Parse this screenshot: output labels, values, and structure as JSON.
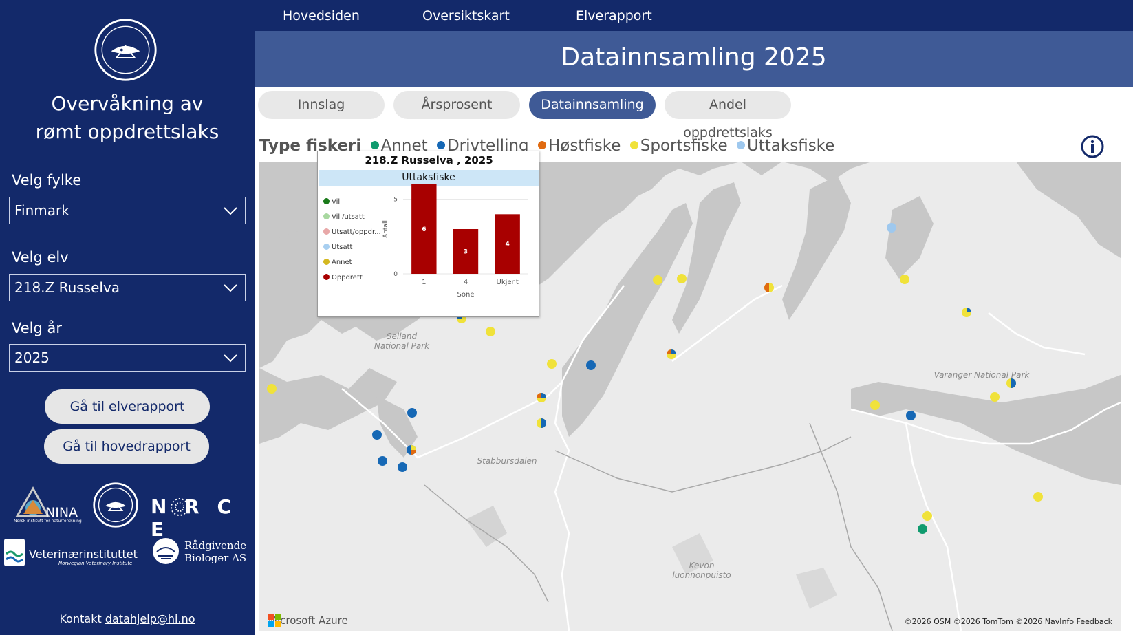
{
  "sidebar": {
    "title_line1": "Overvåkning av",
    "title_line2": "rømt oppdrettslaks",
    "filters": [
      {
        "label": "Velg fylke",
        "value": "Finmark"
      },
      {
        "label": "Velg elv",
        "value": "218.Z Russelva"
      },
      {
        "label": "Velg år",
        "value": "2025"
      }
    ],
    "buttons": {
      "river_report": "Gå til elverapport",
      "main_report": "Gå til hovedrapport"
    },
    "partners": {
      "nina": "NINA",
      "nina_sub": "Norsk institutt for naturforskning",
      "norce": "N  R C E",
      "vet": "Veterinærinstituttet",
      "vet_sub": "Norwegian Veterinary Institute",
      "rb_line1": "Rådgivende",
      "rb_line2": "Biologer AS"
    },
    "contact_prefix": "Kontakt",
    "contact_email": "datahjelp@hi.no"
  },
  "nav": {
    "items": [
      "Hovedsiden",
      "Oversiktskart",
      "Elverapport"
    ],
    "active": "Oversiktskart"
  },
  "banner_title": "Datainnsamling 2025",
  "tabs": [
    {
      "label": "Innslag",
      "active": false
    },
    {
      "label": "Årsprosent",
      "active": false
    },
    {
      "label": "Datainnsamling",
      "active": true
    },
    {
      "label": "Andel oppdrettslaks",
      "active": false
    }
  ],
  "legend": {
    "title": "Type fiskeri",
    "items": [
      {
        "label": "Annet",
        "color": "#0f9b6e"
      },
      {
        "label": "Drivtelling",
        "color": "#1668b5"
      },
      {
        "label": "Høstfiske",
        "color": "#e06a10"
      },
      {
        "label": "Sportsfiske",
        "color": "#f0e23a"
      },
      {
        "label": "Uttaksfiske",
        "color": "#9ec8ee"
      }
    ]
  },
  "map": {
    "labels": {
      "seiland": "Seiland National Park",
      "varanger": "Varanger National Park",
      "stabbursdalen": "Stabbursdalen",
      "kevon": "Kevon luonnonpuisto"
    },
    "brand": "Microsoft Azure",
    "attribution": "©2026 OSM  ©2026 TomTom  ©2026 NavInfo",
    "feedback": "Feedback"
  },
  "tooltip": {
    "title": "218.Z   Russelva ,   2025",
    "subtitle": "Uttaksfiske",
    "legend": [
      {
        "label": "Vill",
        "color": "#1a7a1a"
      },
      {
        "label": "Vill/utsatt",
        "color": "#a8d8a0"
      },
      {
        "label": "Utsatt/oppdr...",
        "color": "#e8a8a8"
      },
      {
        "label": "Utsatt",
        "color": "#a8cff0"
      },
      {
        "label": "Annet",
        "color": "#d4b820"
      },
      {
        "label": "Oppdrett",
        "color": "#a80000"
      }
    ]
  },
  "chart_data": {
    "type": "bar",
    "categories": [
      "1",
      "4",
      "Ukjent"
    ],
    "values": [
      6,
      3,
      4
    ],
    "xlabel": "Sone",
    "ylabel": "Antall",
    "ylim": [
      0,
      6
    ],
    "yticks": [
      "0",
      "5"
    ],
    "bar_color": "#a80000"
  }
}
